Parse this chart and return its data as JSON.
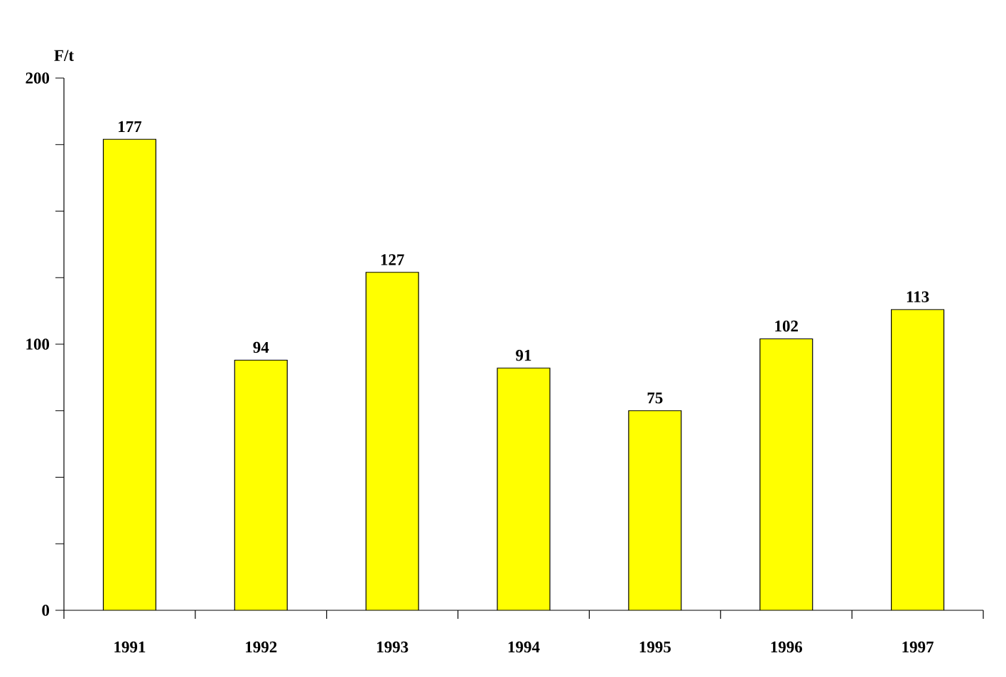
{
  "chart_data": {
    "type": "bar",
    "ylabel": "F/t",
    "categories": [
      "1991",
      "1992",
      "1993",
      "1994",
      "1995",
      "1996",
      "1997"
    ],
    "values": [
      177,
      94,
      127,
      91,
      75,
      102,
      113
    ],
    "color": "#ffff00",
    "ylim": [
      0,
      200
    ],
    "yticks": [
      0,
      {
        "value": 25,
        "label": null
      },
      {
        "value": 50,
        "label": null
      },
      {
        "value": 75,
        "label": null
      },
      100,
      {
        "value": 125,
        "label": null
      },
      {
        "value": 150,
        "label": null
      },
      {
        "value": 175,
        "label": null
      },
      200
    ],
    "data_labels": true
  }
}
